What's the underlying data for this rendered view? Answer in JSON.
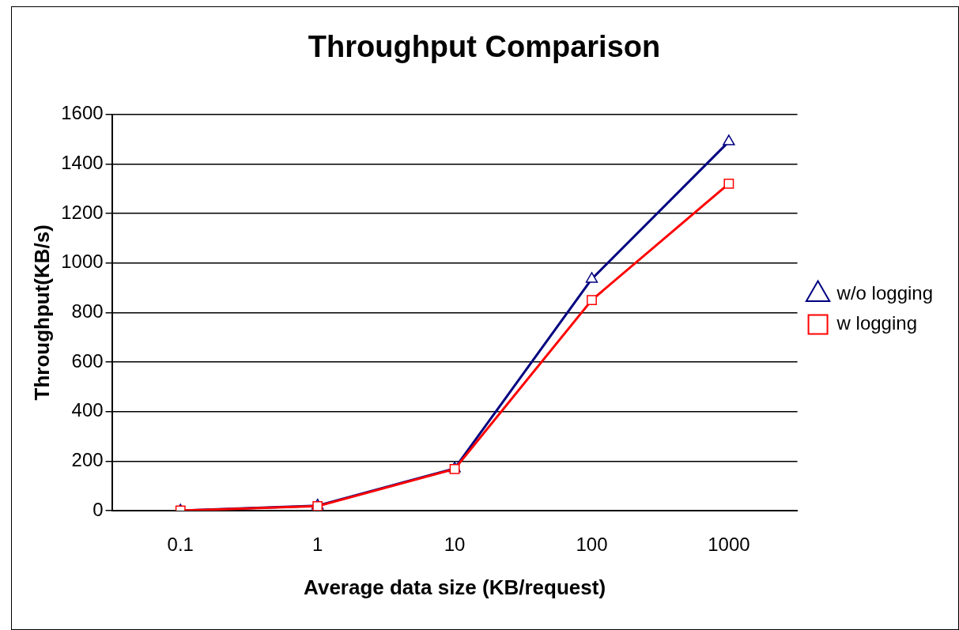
{
  "chart_data": {
    "type": "line",
    "title": "Throughput Comparison",
    "xlabel": "Average data size (KB/request)",
    "ylabel": "Throughput(KB/s)",
    "categories": [
      "0.1",
      "1",
      "10",
      "100",
      "1000"
    ],
    "series": [
      {
        "name": "w/o logging",
        "color": "#000080",
        "marker": "triangle",
        "values": [
          0,
          20,
          170,
          935,
          1490
        ]
      },
      {
        "name": "w logging",
        "color": "#ff0000",
        "marker": "square",
        "values": [
          0,
          18,
          168,
          850,
          1320
        ]
      }
    ],
    "ylim": [
      0,
      1600
    ],
    "yticks": [
      0,
      200,
      400,
      600,
      800,
      1000,
      1200,
      1400,
      1600
    ],
    "grid": "y",
    "legend": "right",
    "line_style": "solid"
  }
}
